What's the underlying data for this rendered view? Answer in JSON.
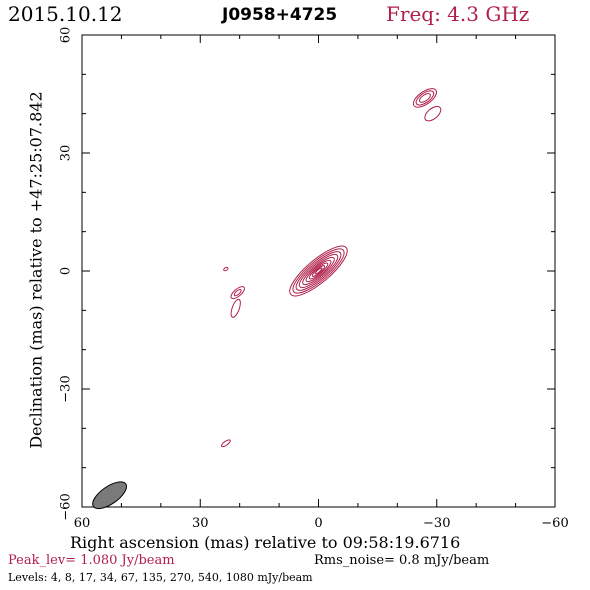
{
  "header": {
    "date": "2015.10.12",
    "source": "J0958+4725",
    "freq": "Freq: 4.3 GHz"
  },
  "footer": {
    "peak": "Peak_lev=  1.080 Jy/beam",
    "rms": "Rms_noise=  0.8 mJy/beam",
    "levels": "Levels:   4,   8,  17,  34,  67, 135, 270, 540, 1080 mJy/beam"
  },
  "colors": {
    "contour": "#b0204a",
    "beam": "#7a7a7a",
    "axes": "#000000"
  },
  "chart_data": {
    "type": "contour",
    "title": "J0958+4725",
    "xlabel": "Right ascension (mas) relative to 09:58:19.6716",
    "ylabel": "Declination (mas) relative to +47:25:07.842",
    "xlim": [
      60,
      -60
    ],
    "ylim": [
      -60,
      60
    ],
    "x_ticks": [
      60,
      30,
      0,
      -30,
      -60
    ],
    "y_ticks": [
      -60,
      -30,
      0,
      30,
      60
    ],
    "x_tick_labels": [
      "60",
      "30",
      "0",
      "−30",
      "−60"
    ],
    "y_tick_labels": [
      "−60",
      "−30",
      "0",
      "30",
      "60"
    ],
    "levels_mJy": [
      4,
      8,
      17,
      34,
      67,
      135,
      270,
      540,
      1080
    ],
    "peak_Jy_per_beam": 1.08,
    "rms_mJy_per_beam": 0.8,
    "beam": {
      "ra": 53,
      "dec": -57,
      "major": 5.0,
      "minor": 2.2,
      "pa_deg": 35
    },
    "components": [
      {
        "ra": 0,
        "dec": 0,
        "rings": [
          [
            9.2,
            2.9
          ],
          [
            8.2,
            2.5
          ],
          [
            7.2,
            2.1
          ],
          [
            6.2,
            1.75
          ],
          [
            5.1,
            1.4
          ],
          [
            4.0,
            1.1
          ],
          [
            3.0,
            0.8
          ],
          [
            2.0,
            0.55
          ],
          [
            1.1,
            0.3
          ]
        ],
        "pa_deg": 40
      },
      {
        "ra": 23.5,
        "dec": 0.5,
        "rings": [
          [
            0.6,
            0.35
          ]
        ],
        "pa_deg": 30
      },
      {
        "ra": 20.5,
        "dec": -5.5,
        "rings": [
          [
            2.1,
            0.9
          ],
          [
            1.1,
            0.45
          ]
        ],
        "pa_deg": 40
      },
      {
        "ra": 21,
        "dec": -9.5,
        "rings": [
          [
            2.4,
            0.9
          ]
        ],
        "pa_deg": 70
      },
      {
        "ra": 23.5,
        "dec": -43.8,
        "rings": [
          [
            1.3,
            0.5
          ]
        ],
        "pa_deg": 35
      },
      {
        "ra": -27,
        "dec": 44,
        "rings": [
          [
            3.4,
            1.6
          ],
          [
            2.6,
            1.2
          ],
          [
            1.6,
            0.75
          ]
        ],
        "pa_deg": 35
      },
      {
        "ra": -29,
        "dec": 40,
        "rings": [
          [
            2.4,
            1.3
          ]
        ],
        "pa_deg": 40
      }
    ]
  }
}
